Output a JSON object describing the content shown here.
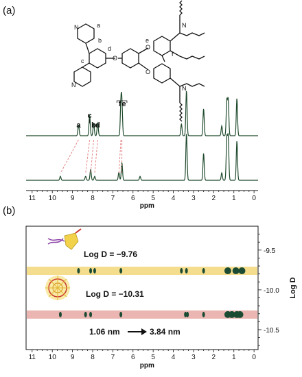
{
  "panels": {
    "a": {
      "label": "(a)"
    },
    "b": {
      "label": "(b)"
    }
  },
  "structure_labels": {
    "a": "a",
    "b": "b",
    "c": "c",
    "d": "d",
    "e": "e",
    "f": "f",
    "N": "N",
    "O": "O"
  },
  "colors": {
    "spectrum_line": "#1f4a2c",
    "dashed_connector": "#e58a8a",
    "band_yellow": "#f3d77a",
    "band_pink": "#e8a9a5",
    "peak_fill": "#1b4b33",
    "axis": "#111111",
    "logo_yellow": "#f2d24b",
    "logo_red": "#c9362c",
    "logo_purple": "#8a3fa6"
  },
  "chart_data": [
    {
      "type": "line",
      "panel": "a",
      "description": "Stacked 1H NMR spectra",
      "xlabel": "ppm",
      "x_ticks": [
        11,
        10,
        9,
        8,
        7,
        6,
        5,
        4,
        3,
        2,
        1,
        0
      ],
      "xlim": [
        11.3,
        -0.2
      ],
      "series": [
        {
          "peaks": [
            {
              "ppm": 8.7,
              "h": 0.22
            },
            {
              "ppm": 8.15,
              "h": 0.42
            },
            {
              "ppm": 7.95,
              "h": 0.26
            },
            {
              "ppm": 7.75,
              "h": 0.26
            },
            {
              "ppm": 6.6,
              "h": 0.62
            },
            {
              "ppm": 6.55,
              "h": 0.62
            },
            {
              "ppm": 3.6,
              "h": 0.24
            },
            {
              "ppm": 3.35,
              "h": 0.92
            },
            {
              "ppm": 2.5,
              "h": 0.55
            },
            {
              "ppm": 1.6,
              "h": 0.2
            },
            {
              "ppm": 1.35,
              "h": 0.7
            },
            {
              "ppm": 1.28,
              "h": 0.72
            },
            {
              "ppm": 0.85,
              "h": 0.76
            }
          ]
        },
        {
          "peaks": [
            {
              "ppm": 9.6,
              "h": 0.08
            },
            {
              "ppm": 8.35,
              "h": 0.08
            },
            {
              "ppm": 8.1,
              "h": 0.22
            },
            {
              "ppm": 7.9,
              "h": 0.08
            },
            {
              "ppm": 6.7,
              "h": 0.16
            },
            {
              "ppm": 6.55,
              "h": 0.36
            },
            {
              "ppm": 5.65,
              "h": 0.08
            },
            {
              "ppm": 3.35,
              "h": 0.95
            },
            {
              "ppm": 2.5,
              "h": 0.55
            },
            {
              "ppm": 1.6,
              "h": 0.15
            },
            {
              "ppm": 1.35,
              "h": 0.85
            },
            {
              "ppm": 1.28,
              "h": 0.88
            },
            {
              "ppm": 0.85,
              "h": 0.8
            }
          ]
        }
      ],
      "peak_labels": [
        {
          "text": "a",
          "ppm": 8.7
        },
        {
          "text": "c",
          "ppm": 8.15
        },
        {
          "text": "b",
          "ppm": 7.95
        },
        {
          "text": "d",
          "ppm": 7.75
        },
        {
          "text": "f",
          "ppm": 6.65
        },
        {
          "text": "e",
          "ppm": 6.45
        }
      ],
      "correlations": [
        {
          "from": 8.7,
          "to": 9.6
        },
        {
          "from": 8.15,
          "to": 8.35
        },
        {
          "from": 7.95,
          "to": 8.1
        },
        {
          "from": 7.75,
          "to": 7.9
        },
        {
          "from": 6.6,
          "to": 6.7
        },
        {
          "from": 6.55,
          "to": 6.55
        }
      ]
    },
    {
      "type": "scatter",
      "panel": "b",
      "description": "DOSY NMR spectrum",
      "xlabel": "ppm",
      "ylabel": "Log D",
      "x_ticks": [
        11,
        10,
        9,
        8,
        7,
        6,
        5,
        4,
        3,
        2,
        1,
        0
      ],
      "xlim": [
        11.3,
        -0.2
      ],
      "y_ticks": [
        -9.5,
        -10.0,
        -10.5
      ],
      "ylim": [
        -9.2,
        -10.75
      ],
      "bands": [
        {
          "log_d": -9.76,
          "annotation": "Log D = −9.76",
          "spots": [
            8.7,
            8.1,
            7.9,
            6.6,
            3.6,
            3.35,
            2.5,
            1.3,
            0.9,
            0.6
          ]
        },
        {
          "log_d": -10.31,
          "annotation": "Log D = −10.31",
          "spots": [
            9.6,
            8.35,
            8.1,
            6.6,
            3.4,
            3.3,
            2.5,
            1.3,
            1.1,
            0.85,
            0.7
          ]
        }
      ],
      "size_change": {
        "from": "1.06 nm",
        "to": "3.84 nm"
      }
    }
  ]
}
